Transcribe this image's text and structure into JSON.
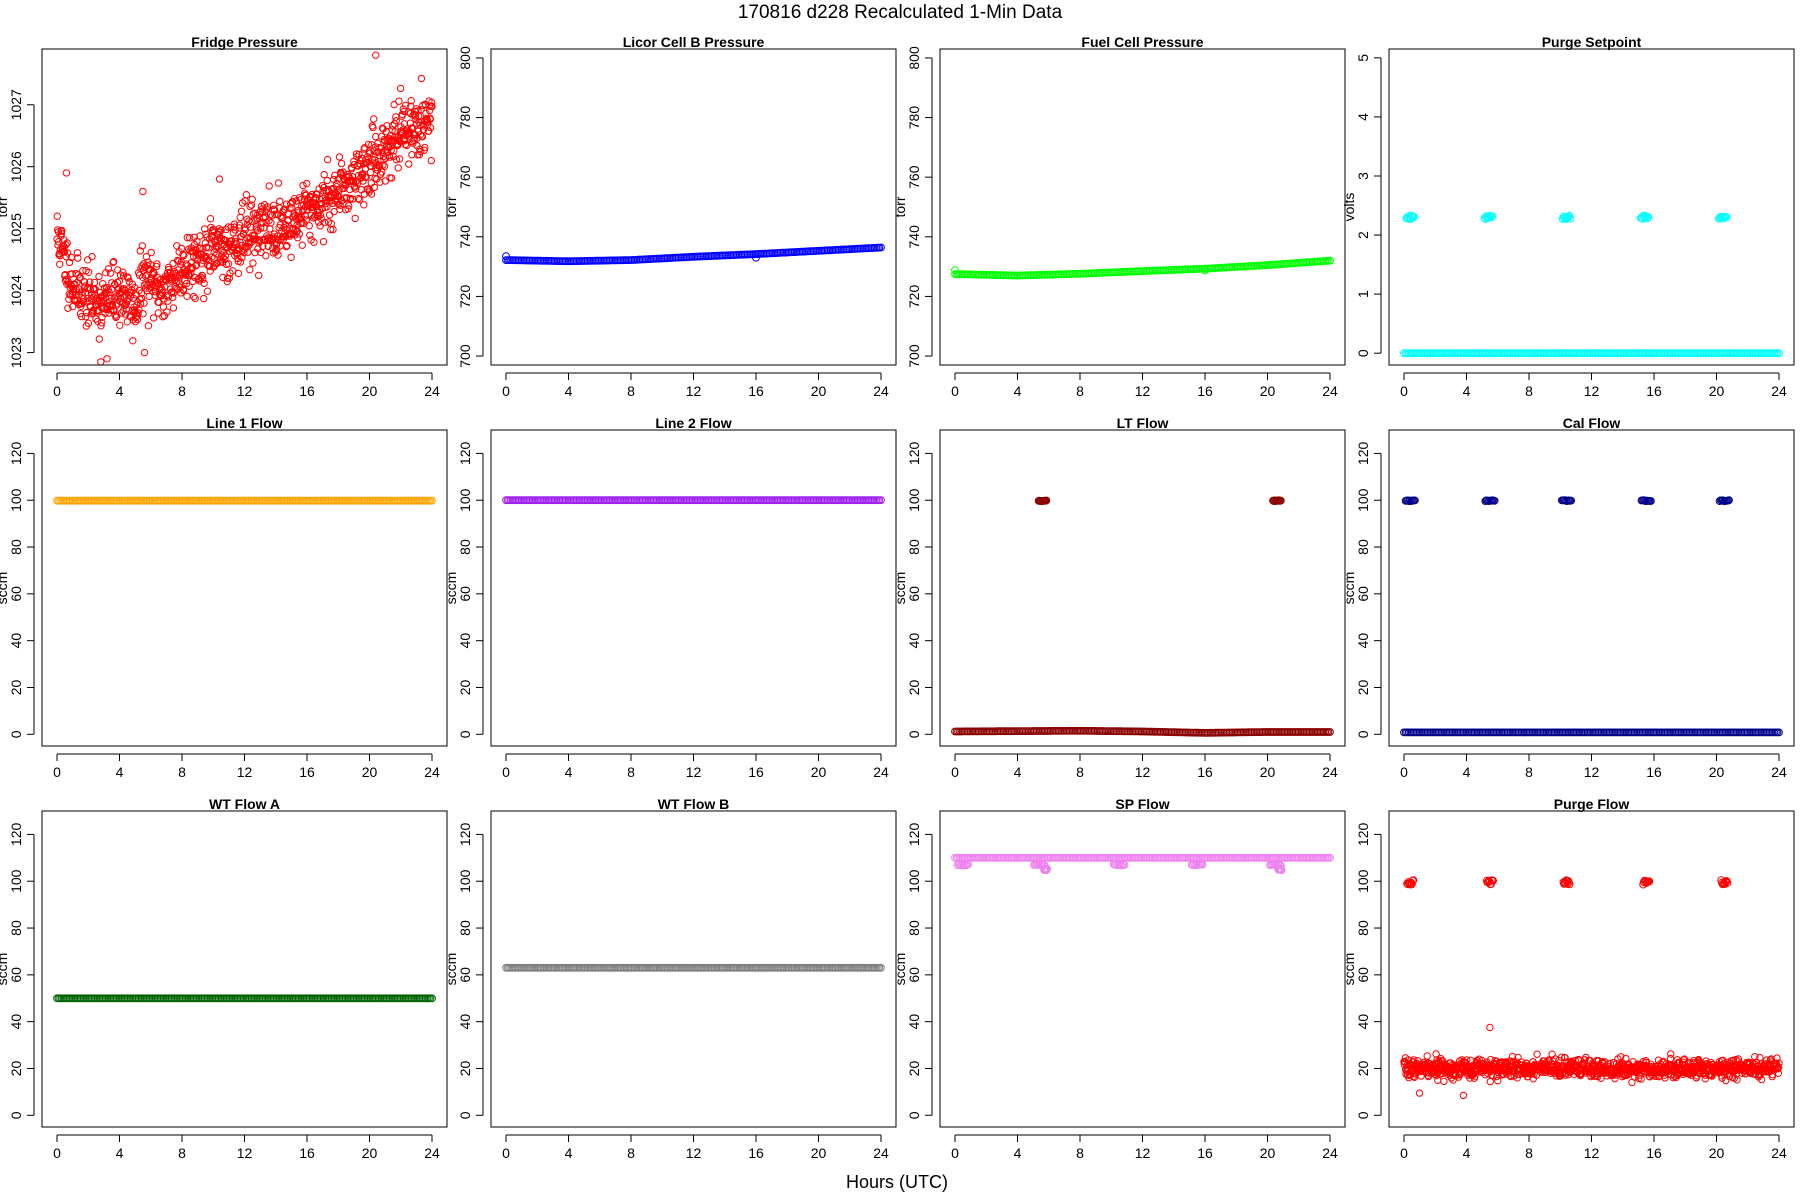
{
  "figure": {
    "title": "170816   d228   Recalculated 1-Min Data",
    "xlabel": "Hours (UTC)"
  },
  "chart_data": [
    {
      "type": "scatter",
      "title": "Fridge Pressure",
      "ylabel": "torr",
      "xlim": [
        -0.96,
        24.96
      ],
      "ylim": [
        1022.8,
        1027.9
      ],
      "xticks": [
        "0",
        "4",
        "8",
        "12",
        "16",
        "20",
        "24"
      ],
      "yticks": [
        "1023",
        "1024",
        "1025",
        "1026",
        "1027"
      ],
      "color": "#ff0000",
      "series": [
        {
          "kind": "scatter_trend",
          "n": 1100,
          "spread": 0.45,
          "seed": 11,
          "trend": [
            [
              0,
              1024.9
            ],
            [
              0.5,
              1024.5
            ],
            [
              1,
              1024.1
            ],
            [
              2,
              1023.9
            ],
            [
              3,
              1023.8
            ],
            [
              4,
              1024.0
            ],
            [
              5,
              1023.7
            ],
            [
              5.5,
              1024.2
            ],
            [
              6,
              1024.1
            ],
            [
              7,
              1024.0
            ],
            [
              8,
              1024.4
            ],
            [
              9,
              1024.5
            ],
            [
              10,
              1024.6
            ],
            [
              11,
              1024.7
            ],
            [
              12,
              1024.9
            ],
            [
              13,
              1025.0
            ],
            [
              14,
              1025.0
            ],
            [
              15,
              1025.1
            ],
            [
              16,
              1025.3
            ],
            [
              17,
              1025.4
            ],
            [
              18,
              1025.6
            ],
            [
              19,
              1025.8
            ],
            [
              20,
              1026.0
            ],
            [
              21,
              1026.3
            ],
            [
              22,
              1026.5
            ],
            [
              23,
              1026.7
            ],
            [
              24,
              1026.8
            ]
          ],
          "outliers": [
            [
              20.4,
              1027.8
            ],
            [
              2.8,
              1022.85
            ],
            [
              3.2,
              1022.9
            ],
            [
              5.6,
              1023.0
            ],
            [
              0.6,
              1025.9
            ],
            [
              5.5,
              1025.6
            ],
            [
              10.4,
              1025.8
            ]
          ]
        }
      ]
    },
    {
      "type": "scatter",
      "title": "Licor Cell B Pressure",
      "ylabel": "torr",
      "xlim": [
        -0.96,
        24.96
      ],
      "ylim": [
        697,
        803
      ],
      "xticks": [
        "0",
        "4",
        "8",
        "12",
        "16",
        "20",
        "24"
      ],
      "yticks": [
        "700",
        "720",
        "740",
        "760",
        "780",
        "800"
      ],
      "color": "#0000ff",
      "series": [
        {
          "kind": "band",
          "points": [
            [
              0,
              732.2
            ],
            [
              4,
              731.8
            ],
            [
              8,
              732.2
            ],
            [
              12,
              733.3
            ],
            [
              16,
              734.2
            ],
            [
              20,
              735.3
            ],
            [
              24,
              736.4
            ]
          ],
          "outliers": [
            [
              0,
              733.5
            ],
            [
              16,
              733.0
            ]
          ]
        }
      ]
    },
    {
      "type": "scatter",
      "title": "Fuel Cell Pressure",
      "ylabel": "torr",
      "xlim": [
        -0.96,
        24.96
      ],
      "ylim": [
        697,
        803
      ],
      "xticks": [
        "0",
        "4",
        "8",
        "12",
        "16",
        "20",
        "24"
      ],
      "yticks": [
        "700",
        "720",
        "740",
        "760",
        "780",
        "800"
      ],
      "color": "#00ff00",
      "series": [
        {
          "kind": "band",
          "points": [
            [
              0,
              727.5
            ],
            [
              4,
              727.0
            ],
            [
              8,
              727.6
            ],
            [
              12,
              728.5
            ],
            [
              16,
              729.3
            ],
            [
              20,
              730.5
            ],
            [
              24,
              732.0
            ]
          ],
          "outliers": [
            [
              0,
              728.8
            ],
            [
              16,
              728.7
            ]
          ]
        }
      ]
    },
    {
      "type": "scatter",
      "title": "Purge Setpoint",
      "ylabel": "volts",
      "xlim": [
        -0.96,
        24.96
      ],
      "ylim": [
        -0.2,
        5.15
      ],
      "xticks": [
        "0",
        "4",
        "8",
        "12",
        "16",
        "20",
        "24"
      ],
      "yticks": [
        "0",
        "1",
        "2",
        "3",
        "4",
        "5"
      ],
      "color": "#00ffff",
      "series": [
        {
          "kind": "band",
          "points": [
            [
              0,
              0.0
            ],
            [
              24,
              0.0
            ]
          ],
          "outliers": []
        },
        {
          "kind": "clusters",
          "value": 2.3,
          "centers": [
            0.4,
            5.4,
            10.4,
            15.4,
            20.4
          ],
          "width": 0.5,
          "jitter": 0.03
        }
      ]
    },
    {
      "type": "scatter",
      "title": "Line 1 Flow",
      "ylabel": "sccm",
      "xlim": [
        -0.96,
        24.96
      ],
      "ylim": [
        -5,
        130
      ],
      "xticks": [
        "0",
        "4",
        "8",
        "12",
        "16",
        "20",
        "24"
      ],
      "yticks": [
        "0",
        "20",
        "40",
        "60",
        "80",
        "100",
        "120"
      ],
      "color": "#ffa500",
      "series": [
        {
          "kind": "band",
          "points": [
            [
              0,
              99.8
            ],
            [
              24,
              99.8
            ]
          ],
          "outliers": []
        }
      ]
    },
    {
      "type": "scatter",
      "title": "Line 2 Flow",
      "ylabel": "sccm",
      "xlim": [
        -0.96,
        24.96
      ],
      "ylim": [
        -5,
        130
      ],
      "xticks": [
        "0",
        "4",
        "8",
        "12",
        "16",
        "20",
        "24"
      ],
      "yticks": [
        "0",
        "20",
        "40",
        "60",
        "80",
        "100",
        "120"
      ],
      "color": "#a020f0",
      "series": [
        {
          "kind": "band",
          "points": [
            [
              0,
              100.0
            ],
            [
              24,
              100.0
            ]
          ],
          "outliers": []
        }
      ]
    },
    {
      "type": "scatter",
      "title": "LT Flow",
      "ylabel": "sccm",
      "xlim": [
        -0.96,
        24.96
      ],
      "ylim": [
        -5,
        130
      ],
      "xticks": [
        "0",
        "4",
        "8",
        "12",
        "16",
        "20",
        "24"
      ],
      "yticks": [
        "0",
        "20",
        "40",
        "60",
        "80",
        "100",
        "120"
      ],
      "color": "#8b0000",
      "series": [
        {
          "kind": "band",
          "points": [
            [
              0,
              1.2
            ],
            [
              8,
              1.5
            ],
            [
              12,
              1.2
            ],
            [
              16,
              0.6
            ],
            [
              20,
              1.0
            ],
            [
              24,
              1.0
            ]
          ],
          "outliers": []
        },
        {
          "kind": "clusters",
          "value": 99.8,
          "centers": [
            5.6,
            20.6
          ],
          "width": 0.5,
          "jitter": 0.2
        }
      ]
    },
    {
      "type": "scatter",
      "title": "Cal Flow",
      "ylabel": "sccm",
      "xlim": [
        -0.96,
        24.96
      ],
      "ylim": [
        -5,
        130
      ],
      "xticks": [
        "0",
        "4",
        "8",
        "12",
        "16",
        "20",
        "24"
      ],
      "yticks": [
        "0",
        "20",
        "40",
        "60",
        "80",
        "100",
        "120"
      ],
      "color": "#00008b",
      "series": [
        {
          "kind": "band",
          "points": [
            [
              0,
              0.8
            ],
            [
              24,
              0.8
            ]
          ],
          "outliers": []
        },
        {
          "kind": "clusters",
          "value": 99.8,
          "centers": [
            0.4,
            5.5,
            10.4,
            15.5,
            20.5
          ],
          "width": 0.6,
          "jitter": 0.2
        }
      ]
    },
    {
      "type": "scatter",
      "title": "WT Flow A",
      "ylabel": "sccm",
      "xlim": [
        -0.96,
        24.96
      ],
      "ylim": [
        -5,
        130
      ],
      "xticks": [
        "0",
        "4",
        "8",
        "12",
        "16",
        "20",
        "24"
      ],
      "yticks": [
        "0",
        "20",
        "40",
        "60",
        "80",
        "100",
        "120"
      ],
      "color": "#006400",
      "series": [
        {
          "kind": "band",
          "points": [
            [
              0,
              50.0
            ],
            [
              24,
              50.0
            ]
          ],
          "outliers": []
        }
      ]
    },
    {
      "type": "scatter",
      "title": "WT Flow B",
      "ylabel": "sccm",
      "xlim": [
        -0.96,
        24.96
      ],
      "ylim": [
        -5,
        130
      ],
      "xticks": [
        "0",
        "4",
        "8",
        "12",
        "16",
        "20",
        "24"
      ],
      "yticks": [
        "0",
        "20",
        "40",
        "60",
        "80",
        "100",
        "120"
      ],
      "color": "#808080",
      "series": [
        {
          "kind": "band",
          "points": [
            [
              0,
              63.0
            ],
            [
              24,
              63.0
            ]
          ],
          "outliers": []
        }
      ]
    },
    {
      "type": "scatter",
      "title": "SP Flow",
      "ylabel": "sccm",
      "xlim": [
        -0.96,
        24.96
      ],
      "ylim": [
        -5,
        130
      ],
      "xticks": [
        "0",
        "4",
        "8",
        "12",
        "16",
        "20",
        "24"
      ],
      "yticks": [
        "0",
        "20",
        "40",
        "60",
        "80",
        "100",
        "120"
      ],
      "color": "#ee82ee",
      "series": [
        {
          "kind": "band",
          "points": [
            [
              0,
              110.0
            ],
            [
              24,
              110.0
            ]
          ],
          "outliers": []
        },
        {
          "kind": "clusters",
          "value": 107.0,
          "centers": [
            0.5,
            5.4,
            10.5,
            15.5,
            20.5
          ],
          "width": 0.7,
          "jitter": 0.3
        },
        {
          "kind": "clusters",
          "value": 105.0,
          "centers": [
            5.8,
            20.8
          ],
          "width": 0.2,
          "jitter": 0.3
        }
      ]
    },
    {
      "type": "scatter",
      "title": "Purge Flow",
      "ylabel": "sccm",
      "xlim": [
        -0.96,
        24.96
      ],
      "ylim": [
        -5,
        130
      ],
      "xticks": [
        "0",
        "4",
        "8",
        "12",
        "16",
        "20",
        "24"
      ],
      "yticks": [
        "0",
        "20",
        "40",
        "60",
        "80",
        "100",
        "120"
      ],
      "color": "#ff0000",
      "series": [
        {
          "kind": "scatter_trend",
          "n": 1100,
          "spread": 3.6,
          "seed": 7,
          "trend": [
            [
              0,
              20
            ],
            [
              24,
              20
            ]
          ],
          "outliers": [
            [
              5.5,
              37.5
            ],
            [
              3.8,
              8.5
            ],
            [
              1.0,
              9.5
            ]
          ]
        },
        {
          "kind": "clusters",
          "value": 99.5,
          "centers": [
            0.4,
            5.5,
            10.4,
            15.5,
            20.5
          ],
          "width": 0.4,
          "jitter": 1.0
        }
      ]
    }
  ]
}
